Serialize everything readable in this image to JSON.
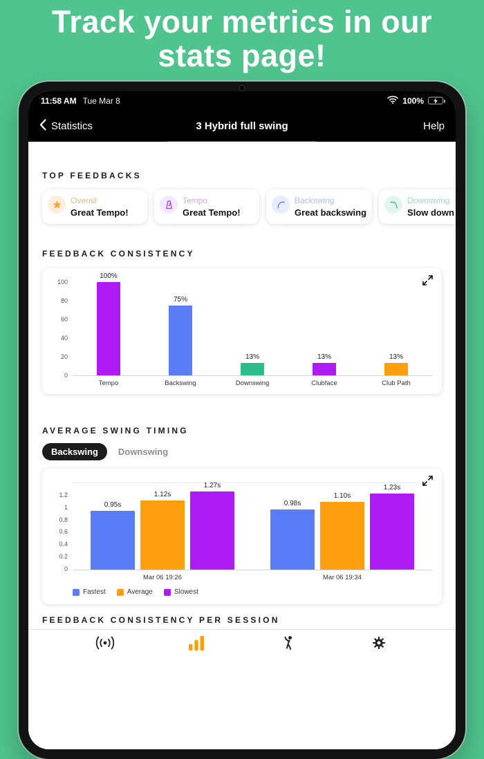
{
  "page": {
    "headline_line1": "Track your metrics in our",
    "headline_line2": "stats page!"
  },
  "colors": {
    "page_bg": "#4FC48E",
    "accent_orange": "#FF9F10",
    "accent_blue": "#5B7CF7",
    "accent_purple": "#AE1BF5",
    "accent_green": "#2BBE8C"
  },
  "status_bar": {
    "time": "11:58 AM",
    "date": "Tue Mar 8",
    "battery_percent": "100%"
  },
  "nav": {
    "back_label": "Statistics",
    "title": "3 Hybrid full swing",
    "help_label": "Help"
  },
  "top_feedbacks": {
    "section_title": "TOP FEEDBACKS",
    "cards": [
      {
        "label": "Overall",
        "text": "Great Tempo!",
        "icon": "star-icon",
        "icon_color": "#F5A93B",
        "icon_bg": "#FBEEDC",
        "label_color": "#E3BA8B"
      },
      {
        "label": "Tempo",
        "text": "Great Tempo!",
        "icon": "metronome-icon",
        "icon_color": "#9B3BF0",
        "icon_bg": "#F3E8FD",
        "label_color": "#C9A6F2"
      },
      {
        "label": "Backswing",
        "text": "Great backswing",
        "icon": "backswing-icon",
        "icon_color": "#5B7CF7",
        "icon_bg": "#E7EDFE",
        "label_color": "#A9BCF9"
      },
      {
        "label": "Downswing",
        "text": "Slow down",
        "icon": "downswing-icon",
        "icon_color": "#35C08F",
        "icon_bg": "#E2F6EE",
        "label_color": "#9FD9C4"
      }
    ]
  },
  "feedback_consistency": {
    "section_title": "FEEDBACK CONSISTENCY"
  },
  "average_swing_timing": {
    "section_title": "AVERAGE SWING TIMING",
    "tabs": [
      {
        "label": "Backswing",
        "active": true
      },
      {
        "label": "Downswing",
        "active": false
      }
    ]
  },
  "per_session": {
    "section_title": "FEEDBACK CONSISTENCY PER SESSION"
  },
  "chart_data": [
    {
      "type": "bar",
      "title": "Feedback Consistency",
      "categories": [
        "Tempo",
        "Backswing",
        "Downswing",
        "Clubface",
        "Club Path"
      ],
      "values": [
        100,
        75,
        13,
        13,
        13
      ],
      "value_labels": [
        "100%",
        "75%",
        "13%",
        "13%",
        "13%"
      ],
      "colors": [
        "#AE1BF5",
        "#5B7CF7",
        "#2BBE8C",
        "#AE1BF5",
        "#FF9F10"
      ],
      "yticks": [
        0,
        20,
        40,
        60,
        80,
        100
      ],
      "ytick_labels": [
        "0",
        "20",
        "40",
        "60",
        "80",
        "100"
      ],
      "ylim": [
        0,
        100
      ],
      "legend_position": "none",
      "grid": false
    },
    {
      "type": "bar",
      "title": "Average Swing Timing (Backswing)",
      "categories": [
        "Mar 06 19:26",
        "Mar 06 19:34"
      ],
      "series": [
        {
          "name": "Fastest",
          "color": "#5B7CF7",
          "values": [
            0.95,
            0.98
          ],
          "value_labels": [
            "0.95s",
            "0.98s"
          ]
        },
        {
          "name": "Average",
          "color": "#FF9F10",
          "values": [
            1.12,
            1.1
          ],
          "value_labels": [
            "1.12s",
            "1.10s"
          ]
        },
        {
          "name": "Slowest",
          "color": "#AE1BF5",
          "values": [
            1.27,
            1.23
          ],
          "value_labels": [
            "1.27s",
            "1.23s"
          ]
        }
      ],
      "yticks": [
        0,
        0.2,
        0.4,
        0.6,
        0.8,
        1,
        1.2
      ],
      "ytick_labels": [
        "0",
        "0.2",
        "0.4",
        "0.6",
        "0.8",
        "1",
        "1.2"
      ],
      "ylim": [
        0,
        1.4
      ],
      "legend_position": "bottom-left",
      "grid": false
    }
  ],
  "tab_bar": {
    "active": "stats"
  }
}
